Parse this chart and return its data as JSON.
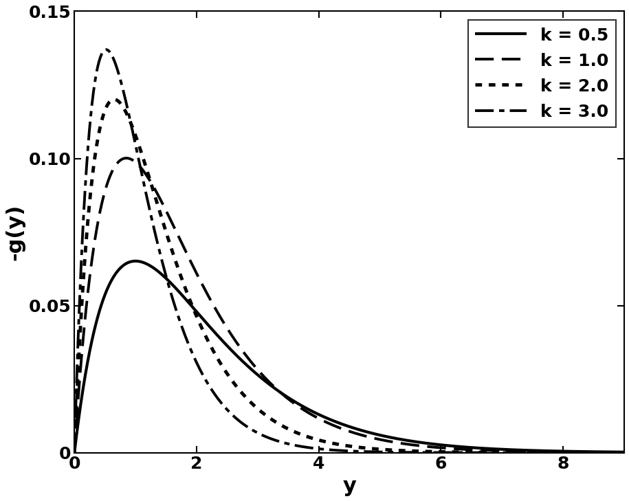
{
  "xlabel": "y",
  "ylabel": "-g(y)",
  "xlim": [
    0,
    9
  ],
  "ylim": [
    0,
    0.15
  ],
  "yticks": [
    0,
    0.05,
    0.1,
    0.15
  ],
  "ytick_labels": [
    "0",
    "0.05",
    "0.10",
    "0.15"
  ],
  "xticks": [
    0,
    2,
    4,
    6,
    8
  ],
  "curves": [
    {
      "A": 0.177,
      "B": 1.0,
      "linestyle": "solid",
      "linewidth": 3.0,
      "label": "k = 0.5"
    },
    {
      "A": 0.32,
      "B": 1.176,
      "linestyle": "dashed",
      "linewidth": 2.8,
      "label": "k = 1.0"
    },
    {
      "A": 0.502,
      "B": 1.538,
      "linestyle": "dotted",
      "linewidth": 3.5,
      "label": "k = 2.0"
    },
    {
      "A": 0.716,
      "B": 1.923,
      "linestyle": "dashdot",
      "linewidth": 2.8,
      "label": "k = 3.0"
    }
  ],
  "color": "#000000",
  "legend_fontsize": 18,
  "axis_label_fontsize": 22,
  "tick_fontsize": 18,
  "legend_loc": "upper right"
}
